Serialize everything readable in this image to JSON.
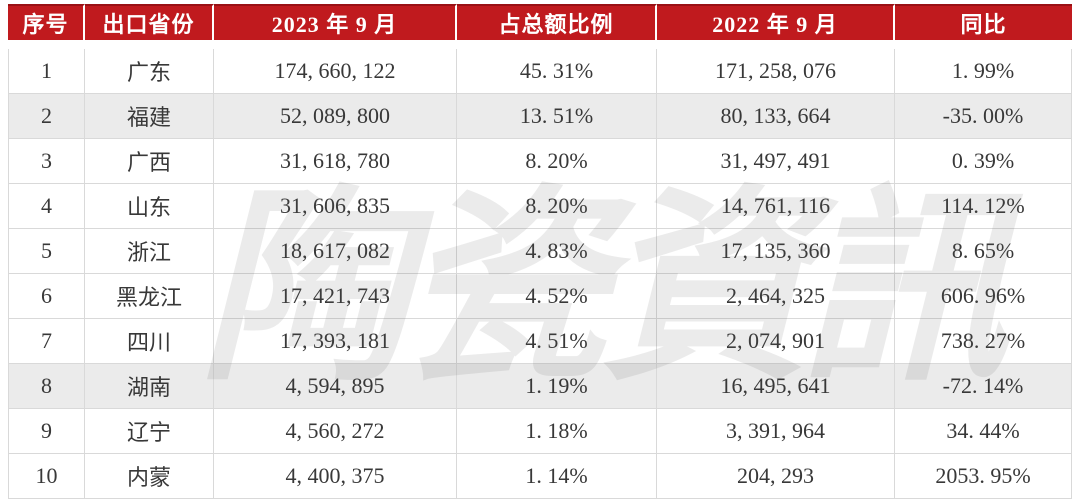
{
  "table": {
    "columns": [
      "序号",
      "出口省份",
      "2023 年 9 月",
      "占总额比例",
      "2022 年 9 月",
      "同比"
    ],
    "rows": [
      {
        "no": "1",
        "province": "广东",
        "v2023": "174, 660, 122",
        "share": "45. 31%",
        "v2022": "171, 258, 076",
        "yoy": "1. 99%",
        "shaded": false
      },
      {
        "no": "2",
        "province": "福建",
        "v2023": "52, 089, 800",
        "share": "13. 51%",
        "v2022": "80, 133, 664",
        "yoy": "-35. 00%",
        "shaded": true
      },
      {
        "no": "3",
        "province": "广西",
        "v2023": "31, 618, 780",
        "share": "8. 20%",
        "v2022": "31, 497, 491",
        "yoy": "0. 39%",
        "shaded": false
      },
      {
        "no": "4",
        "province": "山东",
        "v2023": "31, 606, 835",
        "share": "8. 20%",
        "v2022": "14, 761, 116",
        "yoy": "114. 12%",
        "shaded": false
      },
      {
        "no": "5",
        "province": "浙江",
        "v2023": "18, 617, 082",
        "share": "4. 83%",
        "v2022": "17, 135, 360",
        "yoy": "8. 65%",
        "shaded": false
      },
      {
        "no": "6",
        "province": "黑龙江",
        "v2023": "17, 421, 743",
        "share": "4. 52%",
        "v2022": "2, 464, 325",
        "yoy": "606. 96%",
        "shaded": false
      },
      {
        "no": "7",
        "province": "四川",
        "v2023": "17, 393, 181",
        "share": "4. 51%",
        "v2022": "2, 074, 901",
        "yoy": "738. 27%",
        "shaded": false
      },
      {
        "no": "8",
        "province": "湖南",
        "v2023": "4, 594, 895",
        "share": "1. 19%",
        "v2022": "16, 495, 641",
        "yoy": "-72. 14%",
        "shaded": true
      },
      {
        "no": "9",
        "province": "辽宁",
        "v2023": "4, 560, 272",
        "share": "1. 18%",
        "v2022": "3, 391, 964",
        "yoy": "34. 44%",
        "shaded": false
      },
      {
        "no": "10",
        "province": "内蒙",
        "v2023": "4, 400, 375",
        "share": "1. 14%",
        "v2022": "204, 293",
        "yoy": "2053. 95%",
        "shaded": false
      }
    ]
  },
  "watermark": {
    "text": "陶瓷資訊"
  },
  "colors": {
    "header_bg": "#c01a1e",
    "header_edge": "#9a1115",
    "header_text": "#ffffff",
    "body_text": "#383838",
    "stripe": "#ebebeb",
    "border": "#d9d9d9",
    "watermark_color": "#5f5f5f"
  },
  "chart_data": {
    "type": "table",
    "title": "",
    "columns": [
      "序号",
      "出口省份",
      "2023年9月",
      "占总额比例(%)",
      "2022年9月",
      "同比(%)"
    ],
    "rows": [
      [
        1,
        "广东",
        174660122,
        45.31,
        171258076,
        1.99
      ],
      [
        2,
        "福建",
        52089800,
        13.51,
        80133664,
        -35.0
      ],
      [
        3,
        "广西",
        31618780,
        8.2,
        31497491,
        0.39
      ],
      [
        4,
        "山东",
        31606835,
        8.2,
        14761116,
        114.12
      ],
      [
        5,
        "浙江",
        18617082,
        4.83,
        17135360,
        8.65
      ],
      [
        6,
        "黑龙江",
        17421743,
        4.52,
        2464325,
        606.96
      ],
      [
        7,
        "四川",
        17393181,
        4.51,
        2074901,
        738.27
      ],
      [
        8,
        "湖南",
        4594895,
        1.19,
        16495641,
        -72.14
      ],
      [
        9,
        "辽宁",
        4560272,
        1.18,
        3391964,
        34.44
      ],
      [
        10,
        "内蒙",
        4400375,
        1.14,
        204293,
        2053.95
      ]
    ]
  }
}
